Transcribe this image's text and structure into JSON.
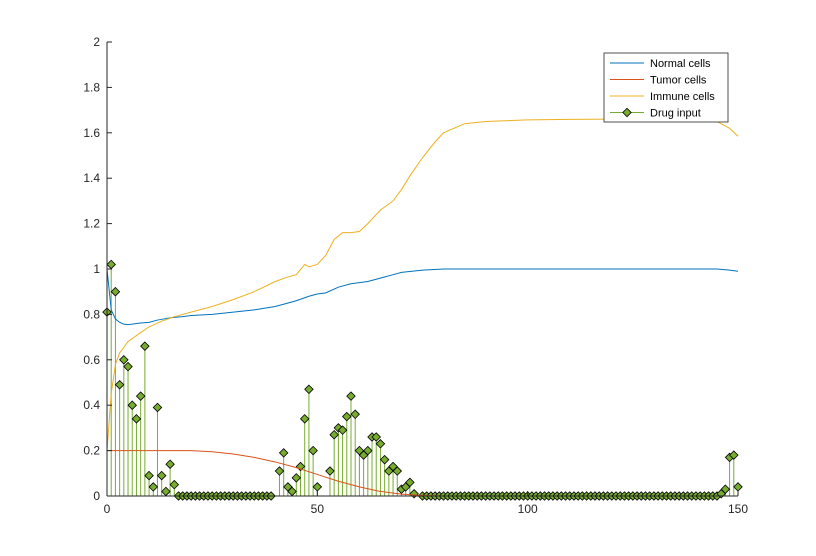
{
  "chart_data": {
    "type": "line",
    "xlim": [
      0,
      150
    ],
    "ylim": [
      0,
      2
    ],
    "x_ticks": [
      0,
      50,
      100,
      150
    ],
    "y_ticks": [
      0,
      0.2,
      0.4,
      0.6,
      0.8,
      1,
      1.2,
      1.4,
      1.6,
      1.8,
      2
    ],
    "legend_position": "top-right",
    "grid": false,
    "series": [
      {
        "name": "Normal cells",
        "kind": "line",
        "color": "#0072BD",
        "points": [
          [
            0,
            1.0
          ],
          [
            1,
            0.82
          ],
          [
            2,
            0.78
          ],
          [
            3,
            0.765
          ],
          [
            4,
            0.757
          ],
          [
            5,
            0.755
          ],
          [
            6,
            0.757
          ],
          [
            8,
            0.762
          ],
          [
            10,
            0.765
          ],
          [
            12,
            0.775
          ],
          [
            15,
            0.785
          ],
          [
            18,
            0.79
          ],
          [
            20,
            0.795
          ],
          [
            25,
            0.8
          ],
          [
            30,
            0.81
          ],
          [
            35,
            0.82
          ],
          [
            40,
            0.835
          ],
          [
            45,
            0.86
          ],
          [
            48,
            0.88
          ],
          [
            50,
            0.89
          ],
          [
            52,
            0.895
          ],
          [
            55,
            0.92
          ],
          [
            58,
            0.935
          ],
          [
            60,
            0.94
          ],
          [
            62,
            0.945
          ],
          [
            65,
            0.96
          ],
          [
            68,
            0.975
          ],
          [
            70,
            0.985
          ],
          [
            75,
            0.995
          ],
          [
            80,
            1.0
          ],
          [
            100,
            1.0
          ],
          [
            120,
            1.0
          ],
          [
            140,
            1.0
          ],
          [
            145,
            1.0
          ],
          [
            148,
            0.995
          ],
          [
            150,
            0.99
          ]
        ]
      },
      {
        "name": "Tumor cells",
        "kind": "line",
        "color": "#D95319",
        "points": [
          [
            0,
            0.2
          ],
          [
            5,
            0.2
          ],
          [
            10,
            0.2
          ],
          [
            15,
            0.2
          ],
          [
            20,
            0.2
          ],
          [
            25,
            0.195
          ],
          [
            30,
            0.185
          ],
          [
            35,
            0.17
          ],
          [
            40,
            0.15
          ],
          [
            45,
            0.125
          ],
          [
            50,
            0.095
          ],
          [
            55,
            0.065
          ],
          [
            60,
            0.04
          ],
          [
            65,
            0.02
          ],
          [
            70,
            0.008
          ],
          [
            75,
            0.002
          ],
          [
            80,
            0.0
          ],
          [
            150,
            0.0
          ]
        ]
      },
      {
        "name": "Immune cells",
        "kind": "line",
        "color": "#EDB120",
        "points": [
          [
            0,
            0.2
          ],
          [
            1,
            0.45
          ],
          [
            2,
            0.58
          ],
          [
            3,
            0.63
          ],
          [
            5,
            0.68
          ],
          [
            8,
            0.72
          ],
          [
            10,
            0.745
          ],
          [
            13,
            0.77
          ],
          [
            16,
            0.79
          ],
          [
            20,
            0.81
          ],
          [
            25,
            0.835
          ],
          [
            30,
            0.865
          ],
          [
            35,
            0.9
          ],
          [
            40,
            0.945
          ],
          [
            43,
            0.965
          ],
          [
            45,
            0.975
          ],
          [
            47,
            1.02
          ],
          [
            48,
            1.01
          ],
          [
            50,
            1.02
          ],
          [
            52,
            1.06
          ],
          [
            54,
            1.13
          ],
          [
            56,
            1.16
          ],
          [
            58,
            1.16
          ],
          [
            60,
            1.165
          ],
          [
            62,
            1.2
          ],
          [
            65,
            1.26
          ],
          [
            68,
            1.3
          ],
          [
            70,
            1.35
          ],
          [
            72,
            1.41
          ],
          [
            75,
            1.49
          ],
          [
            78,
            1.56
          ],
          [
            80,
            1.6
          ],
          [
            85,
            1.64
          ],
          [
            90,
            1.65
          ],
          [
            100,
            1.657
          ],
          [
            110,
            1.659
          ],
          [
            120,
            1.66
          ],
          [
            140,
            1.66
          ],
          [
            145,
            1.65
          ],
          [
            148,
            1.62
          ],
          [
            150,
            1.585
          ]
        ]
      },
      {
        "name": "Drug input",
        "kind": "stem",
        "color": "#77AC30",
        "marker": "diamond",
        "points": [
          [
            0,
            0.81
          ],
          [
            1,
            1.02
          ],
          [
            2,
            0.9
          ],
          [
            3,
            0.49
          ],
          [
            4,
            0.6
          ],
          [
            5,
            0.57
          ],
          [
            6,
            0.4
          ],
          [
            7,
            0.34
          ],
          [
            8,
            0.44
          ],
          [
            9,
            0.66
          ],
          [
            10,
            0.09
          ],
          [
            11,
            0.04
          ],
          [
            12,
            0.39
          ],
          [
            13,
            0.09
          ],
          [
            14,
            0.02
          ],
          [
            15,
            0.14
          ],
          [
            16,
            0.05
          ],
          [
            17,
            0.0
          ],
          [
            18,
            0.0
          ],
          [
            19,
            0.0
          ],
          [
            20,
            0.0
          ],
          [
            21,
            0.0
          ],
          [
            22,
            0.0
          ],
          [
            23,
            0.0
          ],
          [
            24,
            0.0
          ],
          [
            25,
            0.0
          ],
          [
            26,
            0.0
          ],
          [
            27,
            0.0
          ],
          [
            28,
            0.0
          ],
          [
            29,
            0.0
          ],
          [
            30,
            0.0
          ],
          [
            31,
            0.0
          ],
          [
            32,
            0.0
          ],
          [
            33,
            0.0
          ],
          [
            34,
            0.0
          ],
          [
            35,
            0.0
          ],
          [
            36,
            0.0
          ],
          [
            37,
            0.0
          ],
          [
            38,
            0.0
          ],
          [
            39,
            0.0
          ],
          [
            41,
            0.11
          ],
          [
            42,
            0.19
          ],
          [
            43,
            0.04
          ],
          [
            44,
            0.02
          ],
          [
            45,
            0.08
          ],
          [
            46,
            0.13
          ],
          [
            47,
            0.34
          ],
          [
            48,
            0.47
          ],
          [
            49,
            0.2
          ],
          [
            50,
            0.04
          ],
          [
            53,
            0.11
          ],
          [
            54,
            0.27
          ],
          [
            55,
            0.3
          ],
          [
            56,
            0.29
          ],
          [
            57,
            0.35
          ],
          [
            58,
            0.44
          ],
          [
            59,
            0.36
          ],
          [
            60,
            0.2
          ],
          [
            61,
            0.18
          ],
          [
            62,
            0.2
          ],
          [
            63,
            0.26
          ],
          [
            64,
            0.26
          ],
          [
            65,
            0.23
          ],
          [
            66,
            0.16
          ],
          [
            67,
            0.11
          ],
          [
            68,
            0.13
          ],
          [
            69,
            0.11
          ],
          [
            70,
            0.03
          ],
          [
            71,
            0.04
          ],
          [
            72,
            0.06
          ],
          [
            73,
            0.01
          ],
          [
            75,
            0.0
          ],
          [
            76,
            0.0
          ],
          [
            77,
            0.0
          ],
          [
            78,
            0.0
          ],
          [
            79,
            0.0
          ],
          [
            80,
            0.0
          ],
          [
            81,
            0.0
          ],
          [
            82,
            0.0
          ],
          [
            83,
            0.0
          ],
          [
            84,
            0.0
          ],
          [
            85,
            0.0
          ],
          [
            86,
            0.0
          ],
          [
            87,
            0.0
          ],
          [
            88,
            0.0
          ],
          [
            89,
            0.0
          ],
          [
            90,
            0.0
          ],
          [
            91,
            0.0
          ],
          [
            92,
            0.0
          ],
          [
            93,
            0.0
          ],
          [
            94,
            0.0
          ],
          [
            95,
            0.0
          ],
          [
            96,
            0.0
          ],
          [
            97,
            0.0
          ],
          [
            98,
            0.0
          ],
          [
            99,
            0.0
          ],
          [
            100,
            0.0
          ],
          [
            101,
            0.0
          ],
          [
            102,
            0.0
          ],
          [
            103,
            0.0
          ],
          [
            104,
            0.0
          ],
          [
            105,
            0.0
          ],
          [
            106,
            0.0
          ],
          [
            107,
            0.0
          ],
          [
            108,
            0.0
          ],
          [
            109,
            0.0
          ],
          [
            110,
            0.0
          ],
          [
            111,
            0.0
          ],
          [
            112,
            0.0
          ],
          [
            113,
            0.0
          ],
          [
            114,
            0.0
          ],
          [
            115,
            0.0
          ],
          [
            116,
            0.0
          ],
          [
            117,
            0.0
          ],
          [
            118,
            0.0
          ],
          [
            119,
            0.0
          ],
          [
            120,
            0.0
          ],
          [
            121,
            0.0
          ],
          [
            122,
            0.0
          ],
          [
            123,
            0.0
          ],
          [
            124,
            0.0
          ],
          [
            125,
            0.0
          ],
          [
            126,
            0.0
          ],
          [
            127,
            0.0
          ],
          [
            128,
            0.0
          ],
          [
            129,
            0.0
          ],
          [
            130,
            0.0
          ],
          [
            131,
            0.0
          ],
          [
            132,
            0.0
          ],
          [
            133,
            0.0
          ],
          [
            134,
            0.0
          ],
          [
            135,
            0.0
          ],
          [
            136,
            0.0
          ],
          [
            137,
            0.0
          ],
          [
            138,
            0.0
          ],
          [
            139,
            0.0
          ],
          [
            140,
            0.0
          ],
          [
            141,
            0.0
          ],
          [
            142,
            0.0
          ],
          [
            143,
            0.0
          ],
          [
            144,
            0.0
          ],
          [
            145,
            0.0
          ],
          [
            146,
            0.01
          ],
          [
            147,
            0.03
          ],
          [
            148,
            0.17
          ],
          [
            149,
            0.18
          ],
          [
            150,
            0.04
          ]
        ]
      }
    ]
  }
}
